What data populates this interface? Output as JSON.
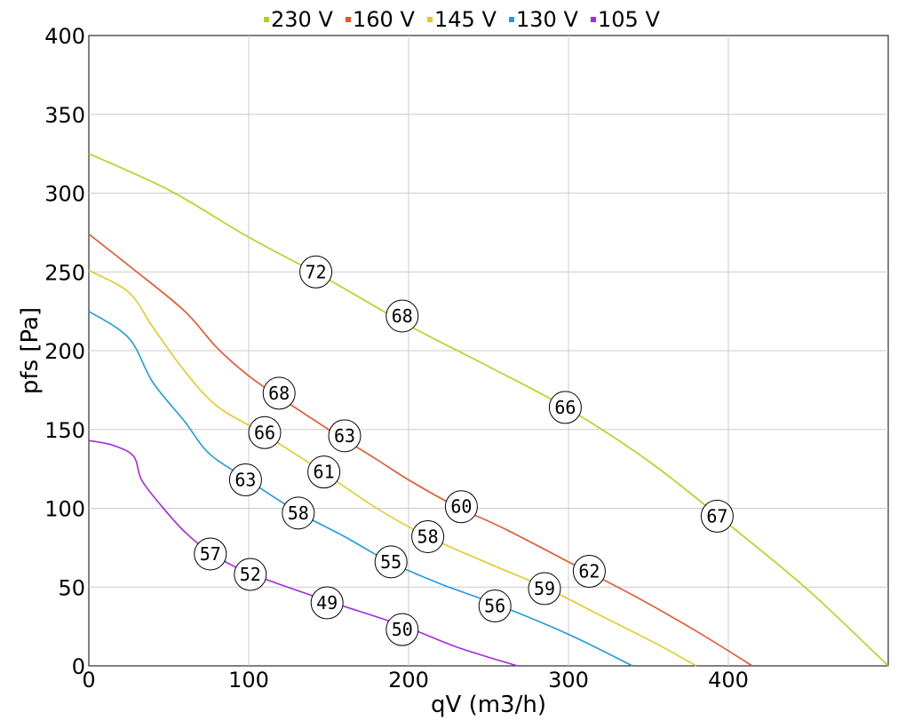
{
  "chart_data": {
    "type": "line",
    "xlabel": "qV (m3/h)",
    "ylabel": "pfs [Pa]",
    "xlim": [
      0,
      500
    ],
    "ylim": [
      0,
      400
    ],
    "x_ticks": [
      0,
      100,
      200,
      300,
      400
    ],
    "y_ticks": [
      0,
      50,
      100,
      150,
      200,
      250,
      300,
      350,
      400
    ],
    "grid": true,
    "legend_position": "top-center",
    "series": [
      {
        "name": "230 V",
        "color": "#a6d71d",
        "points": [
          [
            0,
            325
          ],
          [
            50,
            302
          ],
          [
            100,
            272
          ],
          [
            150,
            245
          ],
          [
            200,
            216
          ],
          [
            250,
            190
          ],
          [
            300,
            163
          ],
          [
            350,
            130
          ],
          [
            400,
            90
          ],
          [
            450,
            48
          ],
          [
            500,
            0
          ]
        ],
        "labels": [
          {
            "x": 142,
            "y": 250,
            "text": "72"
          },
          {
            "x": 196,
            "y": 222,
            "text": "68"
          },
          {
            "x": 298,
            "y": 164,
            "text": "66"
          },
          {
            "x": 393,
            "y": 95,
            "text": "67"
          }
        ]
      },
      {
        "name": "160 V",
        "color": "#e5532b",
        "points": [
          [
            0,
            274
          ],
          [
            30,
            250
          ],
          [
            60,
            225
          ],
          [
            80,
            202
          ],
          [
            100,
            184
          ],
          [
            120,
            170
          ],
          [
            150,
            150
          ],
          [
            180,
            131
          ],
          [
            200,
            118
          ],
          [
            230,
            101
          ],
          [
            260,
            87
          ],
          [
            300,
            66
          ],
          [
            340,
            45
          ],
          [
            380,
            22
          ],
          [
            415,
            0
          ]
        ],
        "labels": [
          {
            "x": 119,
            "y": 173,
            "text": "68"
          },
          {
            "x": 160,
            "y": 146,
            "text": "63"
          },
          {
            "x": 233,
            "y": 101,
            "text": "60"
          },
          {
            "x": 313,
            "y": 60,
            "text": "62"
          }
        ]
      },
      {
        "name": "145 V",
        "color": "#e3c92a",
        "points": [
          [
            0,
            251
          ],
          [
            25,
            237
          ],
          [
            40,
            215
          ],
          [
            60,
            187
          ],
          [
            80,
            165
          ],
          [
            108,
            148
          ],
          [
            145,
            124
          ],
          [
            180,
            100
          ],
          [
            212,
            82
          ],
          [
            250,
            65
          ],
          [
            285,
            50
          ],
          [
            320,
            32
          ],
          [
            355,
            14
          ],
          [
            380,
            0
          ]
        ],
        "labels": [
          {
            "x": 110,
            "y": 148,
            "text": "66"
          },
          {
            "x": 147,
            "y": 123,
            "text": "61"
          },
          {
            "x": 212,
            "y": 82,
            "text": "58"
          },
          {
            "x": 285,
            "y": 49,
            "text": "59"
          }
        ]
      },
      {
        "name": "130 V",
        "color": "#1f9ae3",
        "points": [
          [
            0,
            225
          ],
          [
            25,
            208
          ],
          [
            40,
            180
          ],
          [
            60,
            155
          ],
          [
            75,
            135
          ],
          [
            98,
            119
          ],
          [
            130,
            98
          ],
          [
            160,
            82
          ],
          [
            188,
            66
          ],
          [
            220,
            52
          ],
          [
            255,
            39
          ],
          [
            300,
            20
          ],
          [
            340,
            0
          ]
        ],
        "labels": [
          {
            "x": 98,
            "y": 118,
            "text": "63"
          },
          {
            "x": 131,
            "y": 97,
            "text": "58"
          },
          {
            "x": 189,
            "y": 66,
            "text": "55"
          },
          {
            "x": 254,
            "y": 38,
            "text": "56"
          }
        ]
      },
      {
        "name": "105 V",
        "color": "#a32ae3",
        "points": [
          [
            0,
            143
          ],
          [
            15,
            140
          ],
          [
            28,
            133
          ],
          [
            33,
            118
          ],
          [
            45,
            102
          ],
          [
            60,
            85
          ],
          [
            76,
            72
          ],
          [
            100,
            59
          ],
          [
            150,
            41
          ],
          [
            195,
            26
          ],
          [
            230,
            12
          ],
          [
            268,
            0
          ]
        ],
        "labels": [
          {
            "x": 76,
            "y": 71,
            "text": "57"
          },
          {
            "x": 101,
            "y": 58,
            "text": "52"
          },
          {
            "x": 149,
            "y": 40,
            "text": "49"
          },
          {
            "x": 196,
            "y": 23,
            "text": "50"
          }
        ]
      }
    ]
  }
}
